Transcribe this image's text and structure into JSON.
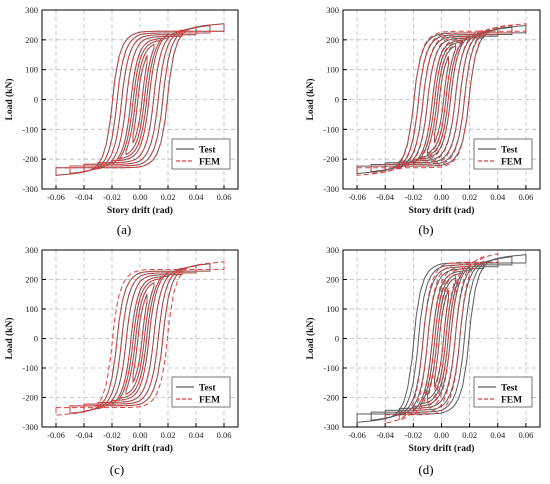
{
  "figure": {
    "panel_captions": [
      "(a)",
      "(b)",
      "(c)",
      "(d)"
    ]
  },
  "chart_data": [
    {
      "type": "line",
      "panel": "(a)",
      "xlabel": "Story drift (rad)",
      "ylabel": "Load (kN)",
      "xlim": [
        -0.07,
        0.07
      ],
      "ylim": [
        -300,
        300
      ],
      "x_ticks": [
        "-0.06",
        "-0.04",
        "-0.02",
        "0.00",
        "0.02",
        "0.04",
        "0.06"
      ],
      "y_ticks": [
        "300",
        "200",
        "100",
        "0",
        "-100",
        "-200",
        "-300"
      ],
      "grid": true,
      "legend_position": "bottom-right",
      "legend": [
        "Test",
        "FEM"
      ],
      "series": [
        {
          "name": "Test",
          "color": "#5a5a5a",
          "style": "solid",
          "peak_drifts": [
            0.005,
            0.01,
            0.015,
            0.02,
            0.03,
            0.04,
            0.05,
            0.06
          ],
          "peak_load": 210
        },
        {
          "name": "FEM",
          "color": "#e03c3c",
          "style": "dashed",
          "peak_drifts": [
            0.005,
            0.01,
            0.015,
            0.02,
            0.03,
            0.04,
            0.05,
            0.06
          ],
          "peak_load": 210
        }
      ]
    },
    {
      "type": "line",
      "panel": "(b)",
      "xlabel": "Story drift (rad)",
      "ylabel": "Load (kN)",
      "xlim": [
        -0.07,
        0.07
      ],
      "ylim": [
        -300,
        300
      ],
      "x_ticks": [
        "-0.06",
        "-0.04",
        "-0.02",
        "0.00",
        "0.02",
        "0.04",
        "0.06"
      ],
      "y_ticks": [
        "300",
        "200",
        "100",
        "0",
        "-100",
        "-200",
        "-300"
      ],
      "grid": true,
      "legend_position": "bottom-right",
      "legend": [
        "Test",
        "FEM"
      ],
      "series": [
        {
          "name": "Test",
          "color": "#5a5a5a",
          "style": "solid",
          "peak_drifts": [
            0.005,
            0.01,
            0.015,
            0.02,
            0.03,
            0.04,
            0.05,
            0.06
          ],
          "peak_load": 205
        },
        {
          "name": "FEM",
          "color": "#e03c3c",
          "style": "dashed",
          "peak_drifts": [
            0.005,
            0.01,
            0.015,
            0.02,
            0.03,
            0.04,
            0.05,
            0.06
          ],
          "peak_load": 210
        }
      ]
    },
    {
      "type": "line",
      "panel": "(c)",
      "xlabel": "Story drift (rad)",
      "ylabel": "Load (kN)",
      "xlim": [
        -0.07,
        0.07
      ],
      "ylim": [
        -300,
        300
      ],
      "x_ticks": [
        "-0.06",
        "-0.04",
        "-0.02",
        "0.00",
        "0.02",
        "0.04",
        "0.06"
      ],
      "y_ticks": [
        "300",
        "200",
        "100",
        "0",
        "-100",
        "-200",
        "-300"
      ],
      "grid": true,
      "legend_position": "bottom-right",
      "legend": [
        "Test",
        "FEM"
      ],
      "series": [
        {
          "name": "Test",
          "color": "#5a5a5a",
          "style": "solid",
          "peak_drifts": [
            0.005,
            0.01,
            0.015,
            0.02,
            0.03,
            0.04,
            0.05
          ],
          "peak_load": 215
        },
        {
          "name": "FEM",
          "color": "#e03c3c",
          "style": "dashed",
          "peak_drifts": [
            0.005,
            0.01,
            0.015,
            0.02,
            0.03,
            0.04,
            0.05,
            0.06
          ],
          "peak_load": 215
        }
      ]
    },
    {
      "type": "line",
      "panel": "(d)",
      "xlabel": "Story drift (rad)",
      "ylabel": "Load (kN)",
      "xlim": [
        -0.07,
        0.07
      ],
      "ylim": [
        -300,
        300
      ],
      "x_ticks": [
        "-0.06",
        "-0.04",
        "-0.02",
        "0.00",
        "0.02",
        "0.04",
        "0.06"
      ],
      "y_ticks": [
        "300",
        "200",
        "100",
        "0",
        "-100",
        "-200",
        "-300"
      ],
      "grid": true,
      "legend_position": "bottom-right",
      "legend": [
        "Test",
        "FEM"
      ],
      "series": [
        {
          "name": "Test",
          "color": "#5a5a5a",
          "style": "solid",
          "peak_drifts": [
            0.005,
            0.01,
            0.015,
            0.02,
            0.03,
            0.04,
            0.05,
            0.06
          ],
          "peak_load": 235
        },
        {
          "name": "FEM",
          "color": "#e03c3c",
          "style": "dashed",
          "peak_drifts": [
            0.005,
            0.01,
            0.015,
            0.02,
            0.03,
            0.04
          ],
          "peak_load": 250
        }
      ]
    }
  ]
}
